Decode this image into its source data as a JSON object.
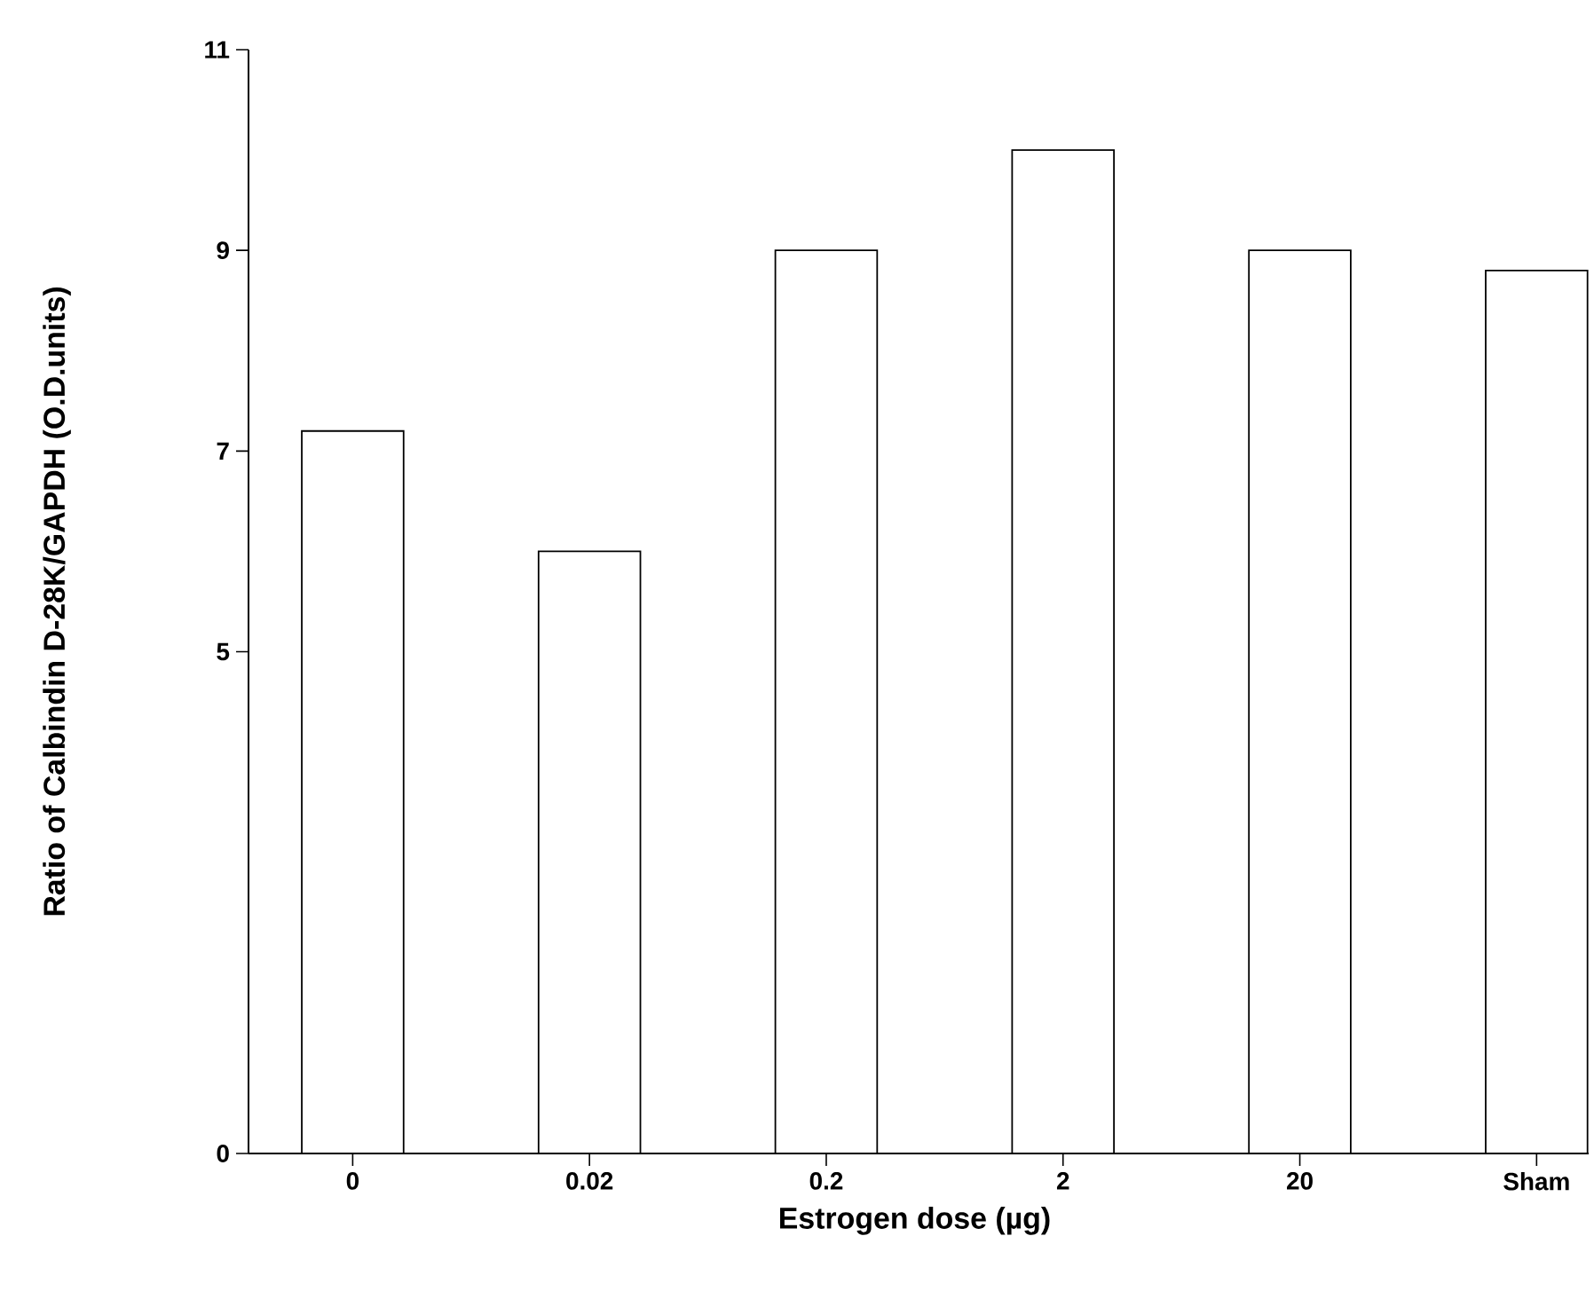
{
  "chart_data": {
    "type": "bar",
    "xlabel": "Estrogen dose (µg)",
    "ylabel": "Ratio of Calbindin D-28K/GAPDH (O.D.units)",
    "categories": [
      "0",
      "0.02",
      "0.2",
      "2",
      "20",
      "Sham"
    ],
    "values": [
      7.2,
      6.0,
      9.0,
      10.0,
      9.0,
      8.8
    ],
    "color": "#000000",
    "ylim": [
      0,
      11
    ],
    "yticks": [
      0,
      5,
      7,
      9,
      11
    ]
  }
}
